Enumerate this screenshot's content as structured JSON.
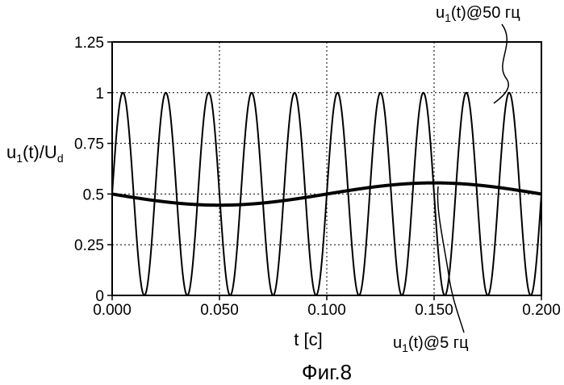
{
  "chart_data": {
    "type": "line",
    "caption": "Фиг.8",
    "xlabel": "t [c]",
    "ylabel_main": "u",
    "ylabel_sub1": "1",
    "ylabel_rest": "(t)/U",
    "ylabel_sub2": "d",
    "xlim": [
      0,
      0.2
    ],
    "ylim": [
      0,
      1.25
    ],
    "x_ticks": [
      0,
      0.05,
      0.1,
      0.15,
      0.2
    ],
    "x_tick_labels": [
      "0.000",
      "0.050",
      "0.100",
      "0.150",
      "0.200"
    ],
    "y_ticks": [
      0,
      0.25,
      0.5,
      0.75,
      1,
      1.25
    ],
    "y_tick_labels": [
      "0",
      "0.25",
      "0.5",
      "0.75",
      "1",
      "1.25"
    ],
    "grid": true,
    "series": [
      {
        "name_main": "u",
        "name_sub": "1",
        "name_rest": "(t)@50 гц",
        "function": "0.5 + 0.5*sin(2*pi*50*t)",
        "frequency_hz": 50,
        "amplitude": 0.5,
        "offset": 0.5,
        "stroke_width": 2,
        "color": "#000000"
      },
      {
        "name_main": "u",
        "name_sub": "1",
        "name_rest": "(t)@5 гц",
        "function": "0.5 - 0.055*sin(2*pi*5*t)",
        "frequency_hz": 5,
        "amplitude": 0.055,
        "offset": 0.5,
        "stroke_width": 4,
        "color": "#000000"
      }
    ]
  }
}
